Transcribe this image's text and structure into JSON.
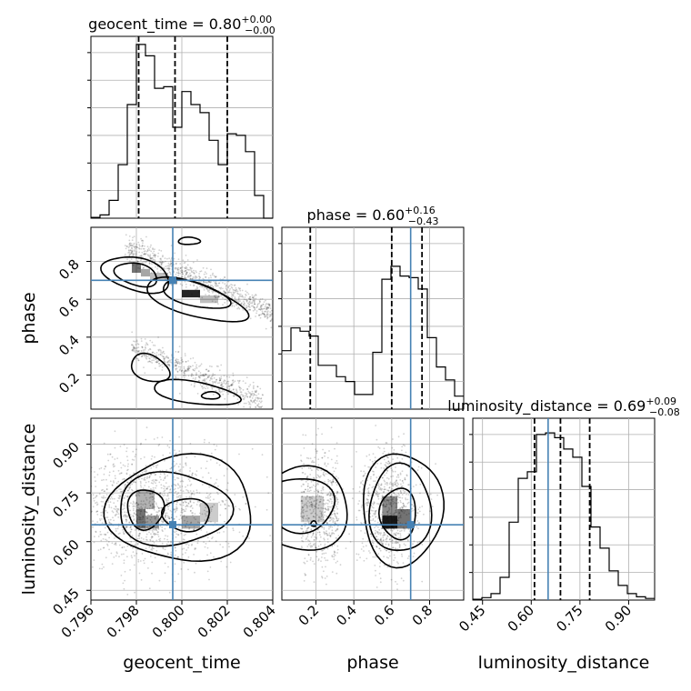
{
  "chart_data": {
    "type": "corner",
    "parameters": [
      "geocent_time",
      "phase",
      "luminosity_distance"
    ],
    "truths": {
      "geocent_time": 0.7996,
      "phase": 0.7,
      "luminosity_distance": 0.652
    },
    "truth_color": "#4682b4",
    "titles": {
      "geocent_time": {
        "name": "geocent_time",
        "median": "0.80",
        "plus": "+0.00",
        "minus": "−0.00"
      },
      "phase": {
        "name": "phase",
        "median": "0.60",
        "plus": "+0.16",
        "minus": "−0.43"
      },
      "luminosity_distance": {
        "name": "luminosity_distance",
        "median": "0.69",
        "plus": "+0.09",
        "minus": "−0.08"
      }
    },
    "axes": {
      "geocent_time": {
        "range": [
          0.796,
          0.804
        ],
        "ticks": [
          0.796,
          0.798,
          0.8,
          0.802,
          0.804
        ],
        "tick_labels": [
          "0.796",
          "0.798",
          "0.800",
          "0.802",
          "0.804"
        ],
        "xlabel": "geocent_time"
      },
      "phase": {
        "range": [
          0.02,
          0.98
        ],
        "ticks": [
          0.2,
          0.4,
          0.6,
          0.8
        ],
        "tick_labels": [
          "0.2",
          "0.4",
          "0.6",
          "0.8"
        ],
        "xlabel": "phase",
        "ylabel": "phase"
      },
      "luminosity_distance": {
        "range": [
          0.42,
          0.98
        ],
        "ticks": [
          0.45,
          0.6,
          0.75,
          0.9
        ],
        "tick_labels": [
          "0.45",
          "0.60",
          "0.75",
          "0.90"
        ],
        "xlabel": "luminosity_distance",
        "ylabel": "luminosity_distance"
      }
    },
    "histograms": {
      "geocent_time": {
        "bins": [
          0.796,
          0.7964,
          0.7968,
          0.7972,
          0.7976,
          0.798,
          0.7984,
          0.7988,
          0.7992,
          0.7996,
          0.8,
          0.8004,
          0.8008,
          0.8012,
          0.8016,
          0.802,
          0.8024,
          0.8028,
          0.8032,
          0.8036,
          0.804
        ],
        "counts": [
          0.5,
          2,
          11,
          33,
          70,
          107,
          100,
          80,
          81,
          56,
          78,
          70,
          65,
          48,
          33,
          52,
          51,
          41,
          14,
          0
        ],
        "quantiles": [
          0.7981,
          0.7997,
          0.802
        ]
      },
      "phase": {
        "bins": [
          0.02,
          0.068,
          0.116,
          0.164,
          0.212,
          0.26,
          0.308,
          0.356,
          0.404,
          0.452,
          0.5,
          0.548,
          0.596,
          0.644,
          0.692,
          0.74,
          0.788,
          0.836,
          0.884,
          0.932,
          0.98
        ],
        "counts": [
          36,
          50,
          48,
          45,
          27,
          27,
          20,
          17,
          9,
          9,
          35,
          80,
          88,
          82,
          81,
          74,
          44,
          26,
          18,
          8
        ],
        "quantiles": [
          0.17,
          0.6,
          0.76
        ]
      },
      "luminosity_distance": {
        "bins": [
          0.42,
          0.448,
          0.476,
          0.504,
          0.532,
          0.56,
          0.588,
          0.616,
          0.644,
          0.672,
          0.7,
          0.728,
          0.756,
          0.784,
          0.812,
          0.84,
          0.868,
          0.896,
          0.924,
          0.952,
          0.98
        ],
        "counts": [
          0.5,
          1.5,
          4,
          14,
          48,
          75,
          79,
          102,
          103,
          100,
          93,
          88,
          70,
          45,
          32,
          18,
          9,
          4,
          2,
          1
        ],
        "quantiles": [
          0.61,
          0.69,
          0.78
        ]
      }
    },
    "hist_ylim": [
      0,
      112
    ],
    "scatter_seed": 7
  }
}
